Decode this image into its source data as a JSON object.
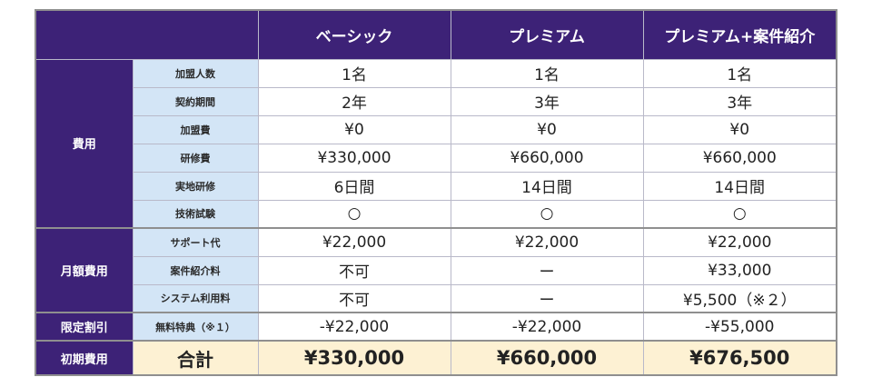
{
  "header": {
    "plans": [
      "ベーシック",
      "プレミアム",
      "プレミアム+案件紹介"
    ]
  },
  "sections": {
    "fees": {
      "label": "費用",
      "rows": [
        {
          "item": "加盟人数",
          "values": [
            "1名",
            "1名",
            "1名"
          ]
        },
        {
          "item": "契約期間",
          "values": [
            "2年",
            "3年",
            "3年"
          ]
        },
        {
          "item": "加盟費",
          "values": [
            "¥0",
            "¥0",
            "¥0"
          ]
        },
        {
          "item": "研修費",
          "values": [
            "¥330,000",
            "¥660,000",
            "¥660,000"
          ]
        },
        {
          "item": "実地研修",
          "values": [
            "6日間",
            "14日間",
            "14日間"
          ]
        },
        {
          "item": "技術試験",
          "values": [
            "○",
            "○",
            "○"
          ]
        }
      ]
    },
    "monthly": {
      "label": "月額費用",
      "rows": [
        {
          "item": "サポート代",
          "values": [
            "¥22,000",
            "¥22,000",
            "¥22,000"
          ]
        },
        {
          "item": "案件紹介料",
          "values": [
            "不可",
            "ー",
            "¥33,000"
          ]
        },
        {
          "item": "システム利用料",
          "values": [
            "不可",
            "ー",
            "¥5,500（※２）"
          ]
        }
      ]
    },
    "discount": {
      "label": "限定割引",
      "rows": [
        {
          "item": "無料特典（※１）",
          "values": [
            "-¥22,000",
            "-¥22,000",
            "-¥55,000"
          ]
        }
      ]
    },
    "initial": {
      "label": "初期費用",
      "total_label": "合計",
      "values": [
        "¥330,000",
        "¥660,000",
        "¥676,500"
      ]
    }
  }
}
